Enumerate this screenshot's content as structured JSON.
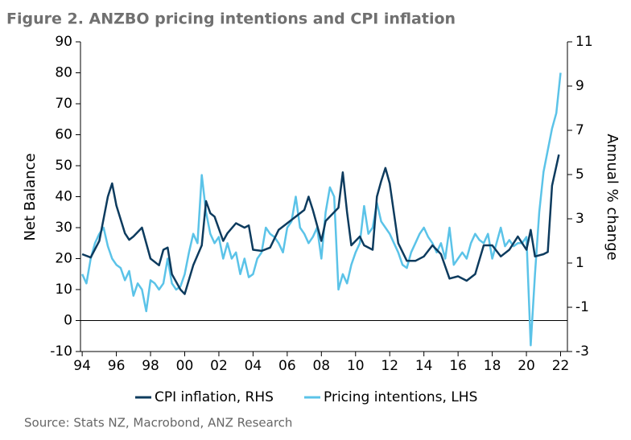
{
  "chart_data": {
    "type": "line",
    "title": "Figure 2.  ANZBO pricing intentions and CPI inflation",
    "source": "Source: Stats NZ, Macrobond, ANZ Research",
    "ylabel": "Net Balance",
    "y2label": "Annual % change",
    "xlim": [
      1993.9,
      2022.4
    ],
    "xticks": [
      {
        "value": 1994,
        "label": "94"
      },
      {
        "value": 1996,
        "label": "96"
      },
      {
        "value": 1998,
        "label": "98"
      },
      {
        "value": 2000,
        "label": "00"
      },
      {
        "value": 2002,
        "label": "02"
      },
      {
        "value": 2004,
        "label": "04"
      },
      {
        "value": 2006,
        "label": "06"
      },
      {
        "value": 2008,
        "label": "08"
      },
      {
        "value": 2010,
        "label": "10"
      },
      {
        "value": 2012,
        "label": "12"
      },
      {
        "value": 2014,
        "label": "14"
      },
      {
        "value": 2016,
        "label": "16"
      },
      {
        "value": 2018,
        "label": "18"
      },
      {
        "value": 2020,
        "label": "20"
      },
      {
        "value": 2022,
        "label": "22"
      }
    ],
    "ylim": [
      -10,
      90
    ],
    "yticks": [
      -10,
      0,
      10,
      20,
      30,
      40,
      50,
      60,
      70,
      80,
      90
    ],
    "y2lim": [
      -3,
      11
    ],
    "y2ticks": [
      -3,
      -1,
      1,
      3,
      5,
      7,
      9,
      11
    ],
    "series": [
      {
        "name": "CPI inflation, RHS",
        "color": "#0d3b5e",
        "axis": "y2",
        "x": [
          1994.0,
          1994.5,
          1995.0,
          1995.5,
          1995.75,
          1996.0,
          1996.5,
          1996.75,
          1997.0,
          1997.5,
          1998.0,
          1998.5,
          1998.75,
          1999.0,
          1999.25,
          1999.75,
          2000.0,
          2000.5,
          2001.0,
          2001.25,
          2001.5,
          2001.75,
          2002.25,
          2002.5,
          2003.0,
          2003.5,
          2003.75,
          2004.0,
          2004.5,
          2005.0,
          2005.5,
          2006.0,
          2006.5,
          2007.0,
          2007.25,
          2007.5,
          2008.0,
          2008.25,
          2008.75,
          2009.0,
          2009.25,
          2009.5,
          2009.75,
          2010.25,
          2010.5,
          2011.0,
          2011.25,
          2011.5,
          2011.75,
          2012.0,
          2012.5,
          2013.0,
          2013.5,
          2014.0,
          2014.5,
          2015.0,
          2015.5,
          2016.0,
          2016.5,
          2017.0,
          2017.5,
          2018.0,
          2018.5,
          2019.0,
          2019.5,
          2020.0,
          2020.25,
          2020.5,
          2021.0,
          2021.25,
          2021.5,
          2021.9
        ],
        "values": [
          1.4,
          1.25,
          2.0,
          4.0,
          4.6,
          3.6,
          2.35,
          2.05,
          2.2,
          2.6,
          1.2,
          0.9,
          1.6,
          1.7,
          0.5,
          -0.2,
          -0.4,
          0.9,
          1.8,
          3.8,
          3.25,
          3.1,
          2.0,
          2.35,
          2.8,
          2.6,
          2.7,
          1.6,
          1.55,
          1.7,
          2.5,
          2.8,
          3.1,
          3.4,
          4.0,
          3.4,
          2.0,
          2.9,
          3.3,
          3.5,
          5.1,
          3.3,
          1.8,
          2.2,
          1.8,
          1.6,
          4.0,
          4.7,
          5.3,
          4.6,
          1.9,
          1.1,
          1.1,
          1.3,
          1.8,
          1.4,
          0.3,
          0.4,
          0.2,
          0.5,
          1.8,
          1.8,
          1.3,
          1.6,
          2.2,
          1.6,
          2.5,
          1.3,
          1.4,
          1.5,
          4.5,
          5.9
        ]
      },
      {
        "name": "Pricing intentions, LHS",
        "color": "#5bc3e8",
        "x": [
          1994.0,
          1994.25,
          1994.5,
          1994.75,
          1995.0,
          1995.25,
          1995.5,
          1995.75,
          1996.0,
          1996.25,
          1996.5,
          1996.75,
          1997.0,
          1997.25,
          1997.5,
          1997.75,
          1998.0,
          1998.25,
          1998.5,
          1998.75,
          1999.0,
          1999.25,
          1999.5,
          1999.75,
          2000.0,
          2000.25,
          2000.5,
          2000.75,
          2001.0,
          2001.25,
          2001.5,
          2001.75,
          2002.0,
          2002.25,
          2002.5,
          2002.75,
          2003.0,
          2003.25,
          2003.5,
          2003.75,
          2004.0,
          2004.25,
          2004.5,
          2004.75,
          2005.0,
          2005.25,
          2005.5,
          2005.75,
          2006.0,
          2006.25,
          2006.5,
          2006.75,
          2007.0,
          2007.25,
          2007.5,
          2007.75,
          2008.0,
          2008.25,
          2008.5,
          2008.75,
          2009.0,
          2009.25,
          2009.5,
          2009.75,
          2010.0,
          2010.25,
          2010.5,
          2010.75,
          2011.0,
          2011.25,
          2011.5,
          2011.75,
          2012.0,
          2012.25,
          2012.5,
          2012.75,
          2013.0,
          2013.25,
          2013.5,
          2013.75,
          2014.0,
          2014.25,
          2014.5,
          2014.75,
          2015.0,
          2015.25,
          2015.5,
          2015.75,
          2016.0,
          2016.25,
          2016.5,
          2016.75,
          2017.0,
          2017.25,
          2017.5,
          2017.75,
          2018.0,
          2018.25,
          2018.5,
          2018.75,
          2019.0,
          2019.25,
          2019.5,
          2019.75,
          2020.0,
          2020.25,
          2020.5,
          2020.75,
          2021.0,
          2021.25,
          2021.5,
          2021.75,
          2022.0
        ],
        "values": [
          15,
          12,
          20,
          25,
          28,
          30,
          24,
          20,
          18,
          17,
          13,
          16,
          8,
          12,
          10,
          3,
          13,
          12,
          10,
          12,
          20,
          12,
          10,
          11,
          15,
          22,
          28,
          25,
          47,
          35,
          28,
          25,
          27,
          20,
          25,
          20,
          22,
          15,
          20,
          14,
          15,
          20,
          22,
          30,
          28,
          27,
          25,
          22,
          30,
          32,
          40,
          30,
          28,
          25,
          27,
          30,
          20,
          35,
          43,
          40,
          10,
          15,
          12,
          18,
          22,
          25,
          37,
          28,
          30,
          38,
          32,
          30,
          28,
          25,
          22,
          18,
          17,
          22,
          25,
          28,
          30,
          27,
          25,
          22,
          25,
          20,
          30,
          18,
          20,
          22,
          20,
          25,
          28,
          26,
          25,
          28,
          20,
          25,
          30,
          24,
          26,
          24,
          25,
          25,
          27,
          -8,
          15,
          35,
          48,
          55,
          62,
          67,
          80
        ]
      }
    ]
  }
}
